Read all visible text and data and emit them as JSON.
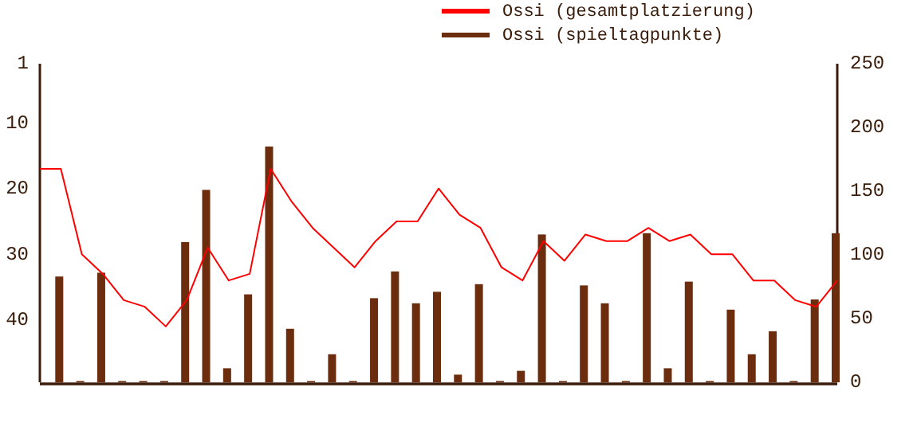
{
  "chart_data": [
    {
      "type": "line",
      "categories": [
        null,
        null,
        null,
        null,
        null,
        null,
        null,
        null,
        null,
        null,
        null,
        null,
        null,
        null,
        null,
        null,
        null,
        null,
        null,
        null,
        null,
        null,
        null,
        null,
        null,
        null,
        null,
        null,
        null,
        null,
        null,
        null,
        null,
        null,
        null,
        null,
        null,
        null,
        null
      ],
      "ylim": [
        49.5,
        1
      ],
      "yticks": [
        1,
        10,
        20,
        30,
        40
      ],
      "tick_labels": "y",
      "legend": "top",
      "marker": "none",
      "line_style": "solid",
      "series": [
        {
          "name": "Ossi (gesamtplatzierung)",
          "color": "#ff0000",
          "values": [
            17,
            17,
            30,
            33,
            37,
            38,
            41,
            37,
            29,
            34,
            33,
            17,
            22,
            26,
            29,
            32,
            28,
            25,
            25,
            20,
            24,
            26,
            32,
            34,
            28,
            31,
            27,
            28,
            28,
            26,
            28,
            27,
            30,
            30,
            34,
            34,
            37,
            38,
            34
          ]
        }
      ]
    },
    {
      "type": "bar",
      "categories": [
        null,
        null,
        null,
        null,
        null,
        null,
        null,
        null,
        null,
        null,
        null,
        null,
        null,
        null,
        null,
        null,
        null,
        null,
        null,
        null,
        null,
        null,
        null,
        null,
        null,
        null,
        null,
        null,
        null,
        null,
        null,
        null,
        null,
        null,
        null,
        null,
        null,
        null
      ],
      "ylim": [
        0,
        250
      ],
      "yticks": [
        0,
        50,
        100,
        150,
        200,
        250
      ],
      "tick_labels": "y",
      "legend": "top",
      "series": [
        {
          "name": "Ossi (spieltagpunkte)",
          "color": "#6b2d0e",
          "values": [
            83,
            1,
            86,
            1,
            1,
            1,
            110,
            151,
            11,
            69,
            185,
            42,
            1,
            22,
            1,
            66,
            87,
            62,
            71,
            6,
            77,
            1,
            9,
            116,
            1,
            76,
            62,
            1,
            117,
            11,
            79,
            1,
            57,
            22,
            40,
            1,
            65,
            117
          ]
        }
      ]
    }
  ]
}
